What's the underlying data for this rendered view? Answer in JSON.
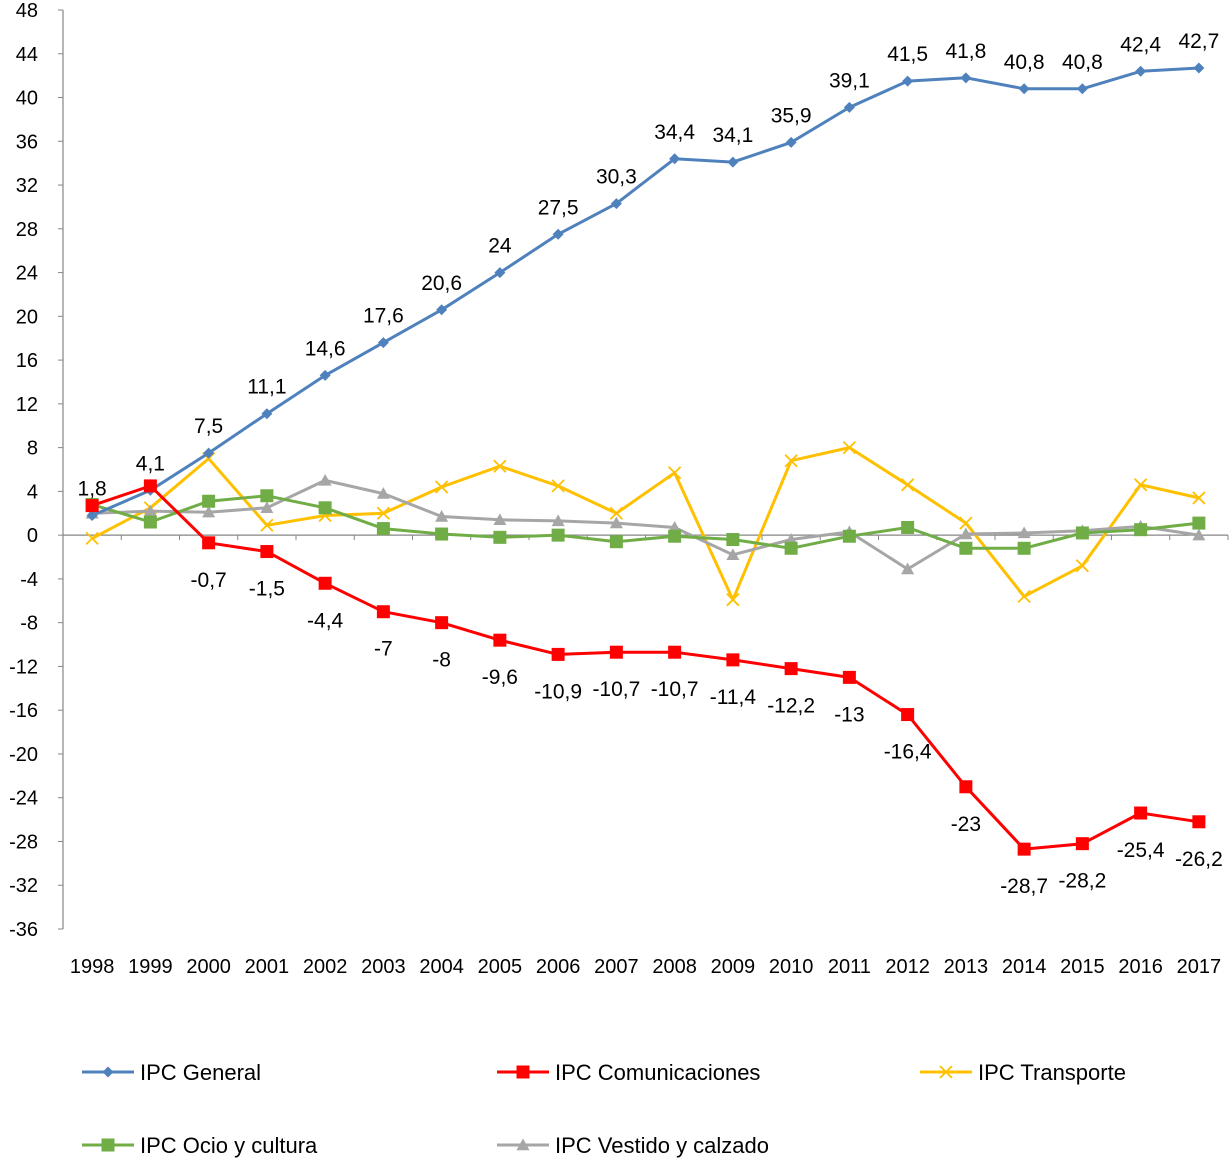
{
  "chart_data": {
    "type": "line",
    "x": [
      "1998",
      "1999",
      "2000",
      "2001",
      "2002",
      "2003",
      "2004",
      "2005",
      "2006",
      "2007",
      "2008",
      "2009",
      "2010",
      "2011",
      "2012",
      "2013",
      "2014",
      "2015",
      "2016",
      "2017"
    ],
    "ylim": [
      -36,
      48
    ],
    "yticks": [
      -36,
      -32,
      -28,
      -24,
      -20,
      -16,
      -12,
      -8,
      -4,
      0,
      4,
      8,
      12,
      16,
      20,
      24,
      28,
      32,
      36,
      40,
      44,
      48
    ],
    "grid": false,
    "legend_position": "bottom",
    "series": [
      {
        "name": "IPC General",
        "color": "#4F81BD",
        "marker": "diamond",
        "values": [
          1.8,
          4.1,
          7.5,
          11.1,
          14.6,
          17.6,
          20.6,
          24,
          27.5,
          30.3,
          34.4,
          34.1,
          35.9,
          39.1,
          41.5,
          41.8,
          40.8,
          40.8,
          42.4,
          42.7
        ],
        "data_labels": [
          "1,8",
          "4,1",
          "7,5",
          "11,1",
          "14,6",
          "17,6",
          "20,6",
          "24",
          "27,5",
          "30,3",
          "34,4",
          "34,1",
          "35,9",
          "39,1",
          "41,5",
          "41,8",
          "40,8",
          "40,8",
          "42,4",
          "42,7"
        ],
        "label_position": "above"
      },
      {
        "name": "IPC Comunicaciones",
        "color": "#FF0000",
        "marker": "square",
        "values": [
          2.7,
          4.5,
          -0.7,
          -1.5,
          -4.4,
          -7,
          -8,
          -9.6,
          -10.9,
          -10.7,
          -10.7,
          -11.4,
          -12.2,
          -13,
          -16.4,
          -23,
          -28.7,
          -28.2,
          -25.4,
          -26.2
        ],
        "data_labels": [
          "",
          "",
          "-0,7",
          "-1,5",
          "-4,4",
          "-7",
          "-8",
          "-9,6",
          "-10,9",
          "-10,7",
          "-10,7",
          "-11,4",
          "-12,2",
          "-13",
          "-16,4",
          "-23",
          "-28,7",
          "-28,2",
          "-25,4",
          "-26,2"
        ],
        "label_position": "below"
      },
      {
        "name": "IPC Transporte",
        "color": "#FFC000",
        "marker": "x",
        "values": [
          -0.3,
          2.5,
          7,
          0.9,
          1.8,
          2,
          4.4,
          6.3,
          4.5,
          2,
          5.7,
          -5.9,
          6.8,
          8,
          4.6,
          1.1,
          -5.6,
          -2.8,
          4.6,
          3.4
        ],
        "data_labels": [],
        "label_position": "none"
      },
      {
        "name": "IPC Ocio y cultura",
        "color": "#70AD47",
        "marker": "square",
        "values": [
          2.8,
          1.2,
          3.1,
          3.6,
          2.5,
          0.6,
          0.1,
          -0.2,
          0,
          -0.6,
          -0.1,
          -0.4,
          -1.2,
          -0.1,
          0.7,
          -1.2,
          -1.2,
          0.2,
          0.5,
          1.1
        ],
        "data_labels": [],
        "label_position": "none"
      },
      {
        "name": "IPC Vestido y calzado",
        "color": "#A6A6A6",
        "marker": "triangle",
        "values": [
          2,
          2.2,
          2.1,
          2.5,
          5,
          3.8,
          1.7,
          1.4,
          1.3,
          1.1,
          0.7,
          -1.8,
          -0.4,
          0.3,
          -3.1,
          0.1,
          0.2,
          0.4,
          0.8,
          0
        ]
      }
    ]
  }
}
